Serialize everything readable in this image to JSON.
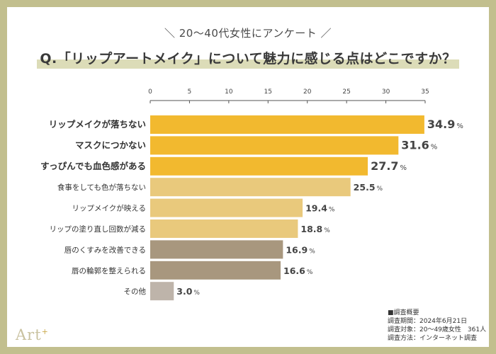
{
  "header": {
    "subtitle": "＼ 20〜40代女性にアンケート ／",
    "question": "Q.「リップアートメイク」について魅力に感じる点はどこですか？"
  },
  "chart_data": {
    "type": "bar",
    "orientation": "horizontal",
    "xlim": [
      0,
      35
    ],
    "ticks": [
      0,
      5,
      10,
      15,
      20,
      25,
      30,
      35
    ],
    "unit": "%",
    "categories": [
      "リップメイクが落ちない",
      "マスクにつかない",
      "すっぴんでも血色感がある",
      "食事をしても色が落ちない",
      "リップメイクが映える",
      "リップの塗り直し回数が減る",
      "唇のくすみを改善できる",
      "唇の輪郭を整えられる",
      "その他"
    ],
    "values": [
      34.9,
      31.6,
      27.7,
      25.5,
      19.4,
      18.8,
      16.9,
      16.6,
      3.0
    ],
    "value_labels": [
      "34.9",
      "31.6",
      "27.7",
      "25.5",
      "19.4",
      "18.8",
      "16.9",
      "16.6",
      "3.0"
    ],
    "bar_colors": [
      "#f2b92f",
      "#f2b92f",
      "#f2b92f",
      "#e9c97c",
      "#e9c97c",
      "#e9c97c",
      "#a8977e",
      "#a8977e",
      "#beb4aa"
    ],
    "bold_categories": [
      0,
      1,
      2
    ]
  },
  "survey": {
    "title": "■調査概要",
    "period": "調査期間：2024年6月21日",
    "target": "調査対象：20～49歳女性　361人",
    "method": "調査方法：インターネット調査"
  },
  "brand": {
    "logo": "Art",
    "logo_mark": "+"
  }
}
